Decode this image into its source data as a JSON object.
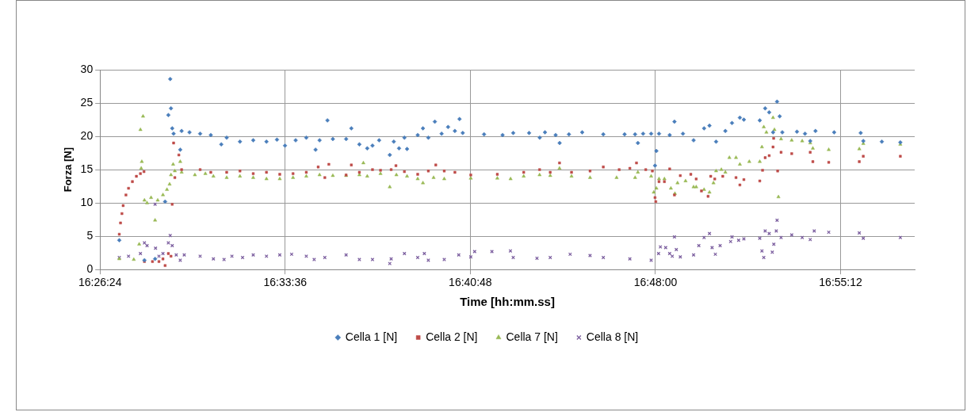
{
  "chart_data": {
    "type": "scatter",
    "xlabel": "Time [hh:mm.ss]",
    "ylabel": "Forza [N]",
    "xlim": [
      16.44,
      16.968
    ],
    "xticks": [
      {
        "value": 16.44,
        "label": "16:26:24"
      },
      {
        "value": 16.56,
        "label": "16:33:36"
      },
      {
        "value": 16.68,
        "label": "16:40:48"
      },
      {
        "value": 16.8,
        "label": "16:48:00"
      },
      {
        "value": 16.92,
        "label": "16:55:12"
      }
    ],
    "ylim": [
      0,
      30
    ],
    "yticks": [
      0,
      5,
      10,
      15,
      20,
      25,
      30
    ],
    "grid": true,
    "legend": "bottom",
    "series": [
      {
        "name": "Cella 1 [N]",
        "color": "#4a7ebb",
        "marker": "diamond",
        "x": [
          16.4525,
          16.4688,
          16.4757,
          16.4822,
          16.4843,
          16.4855,
          16.486,
          16.4868,
          16.4877,
          16.492,
          16.4929,
          16.498,
          16.5049,
          16.5118,
          16.5186,
          16.5221,
          16.5307,
          16.5393,
          16.5479,
          16.5547,
          16.5599,
          16.5668,
          16.5737,
          16.5797,
          16.5823,
          16.5874,
          16.5909,
          16.5995,
          16.6029,
          16.6081,
          16.6132,
          16.6166,
          16.6209,
          16.6278,
          16.6304,
          16.6338,
          16.6373,
          16.639,
          16.6459,
          16.6493,
          16.6528,
          16.657,
          16.6614,
          16.6656,
          16.67,
          16.673,
          16.6751,
          16.6889,
          16.7009,
          16.7078,
          16.7181,
          16.725,
          16.7284,
          16.7353,
          16.7379,
          16.7439,
          16.7525,
          16.7662,
          16.78,
          16.7868,
          16.7886,
          16.792,
          16.7972,
          16.7997,
          16.8006,
          16.8023,
          16.8092,
          16.8123,
          16.8178,
          16.8247,
          16.8315,
          16.835,
          16.8393,
          16.8453,
          16.8496,
          16.8547,
          16.8573,
          16.8676,
          16.8711,
          16.8737,
          16.8762,
          16.8788,
          16.8805,
          16.8822,
          16.8917,
          16.8969,
          16.9003,
          16.9037,
          16.9158,
          16.933,
          16.9347,
          16.9467,
          16.9587
        ],
        "values": [
          4.4,
          1.4,
          1.6,
          10.2,
          23.2,
          28.6,
          24.2,
          21.2,
          20.4,
          18,
          20.8,
          20.6,
          20.4,
          20.2,
          18.8,
          19.8,
          19.2,
          19.4,
          19.2,
          19.5,
          18.6,
          19.4,
          19.8,
          18,
          19.4,
          22.4,
          19.6,
          19.6,
          21.2,
          18.8,
          18.2,
          18.6,
          19.4,
          17.2,
          19.2,
          18.2,
          19.8,
          18.1,
          20.2,
          21.2,
          19.8,
          22.2,
          20.4,
          21.4,
          20.8,
          22.6,
          20.5,
          20.3,
          20.2,
          20.5,
          20.5,
          19.8,
          20.6,
          20.2,
          19,
          20.3,
          20.6,
          20.3,
          20.3,
          20.3,
          19,
          20.4,
          20.4,
          15.6,
          17.8,
          20.4,
          20.2,
          22.2,
          20.4,
          19.4,
          21.2,
          21.6,
          19.2,
          20.8,
          22,
          22.8,
          22.5,
          22.4,
          24.2,
          23.6,
          20.6,
          25.2,
          23,
          20.6,
          20.7,
          20.4,
          19.3,
          20.8,
          20.6,
          20.5,
          19.3,
          19.2,
          19.1
        ]
      },
      {
        "name": "Cella 2 [N]",
        "color": "#be4b48",
        "marker": "square",
        "x": [
          16.4525,
          16.4533,
          16.4542,
          16.455,
          16.4568,
          16.4585,
          16.461,
          16.4636,
          16.4662,
          16.4685,
          16.4688,
          16.474,
          16.4782,
          16.4808,
          16.4822,
          16.4843,
          16.486,
          16.4868,
          16.4877,
          16.4885,
          16.4911,
          16.4929,
          16.5049,
          16.5118,
          16.5221,
          16.5307,
          16.5393,
          16.5479,
          16.5565,
          16.5651,
          16.5737,
          16.5814,
          16.5857,
          16.5883,
          16.5995,
          16.6029,
          16.6081,
          16.6166,
          16.6218,
          16.6287,
          16.6318,
          16.6373,
          16.6459,
          16.6528,
          16.6576,
          16.6631,
          16.67,
          16.6803,
          16.6975,
          16.7146,
          16.7249,
          16.7318,
          16.7378,
          16.7456,
          16.7576,
          16.7662,
          16.7765,
          16.7834,
          16.7877,
          16.7937,
          16.798,
          16.7997,
          16.8002,
          16.8023,
          16.8058,
          16.8092,
          16.8123,
          16.8161,
          16.8229,
          16.8264,
          16.8298,
          16.8341,
          16.8358,
          16.8384,
          16.8436,
          16.8522,
          16.8547,
          16.8573,
          16.8676,
          16.8694,
          16.8711,
          16.8737,
          16.8762,
          16.8766,
          16.8792,
          16.8814,
          16.8883,
          16.9003,
          16.902,
          16.9123,
          16.9321,
          16.9347,
          16.9587
        ],
        "values": [
          5.3,
          7,
          8.4,
          9.6,
          11.2,
          12.2,
          13.2,
          14,
          14.4,
          14.7,
          1.2,
          1.2,
          1.2,
          1.6,
          0.6,
          2.4,
          2,
          9.8,
          19,
          13.8,
          17.2,
          15,
          15,
          14.6,
          14.6,
          14.8,
          14.4,
          14.6,
          14.3,
          14.4,
          14.6,
          15.4,
          13.8,
          15.8,
          14.2,
          15.7,
          14.6,
          15,
          14.9,
          15,
          15.6,
          14.7,
          14.3,
          14.8,
          15.7,
          14.8,
          14.6,
          14.2,
          14.3,
          14.6,
          15,
          14.6,
          16,
          14.6,
          14.8,
          15.4,
          15,
          15.2,
          16,
          15,
          14.8,
          10.8,
          10.2,
          13.2,
          13.2,
          15.1,
          11.2,
          14.1,
          14.3,
          13.6,
          11.8,
          11,
          14,
          13.6,
          14,
          13.8,
          12.7,
          13.5,
          13.3,
          14.9,
          16.8,
          17.1,
          18.4,
          19.7,
          14.8,
          17.6,
          17.4,
          17.6,
          16.2,
          16.1,
          16.2,
          17,
          17
        ]
      },
      {
        "name": "Cella 7 [N]",
        "color": "#98b954",
        "marker": "triangle",
        "x": [
          16.4525,
          16.4619,
          16.4654,
          16.4662,
          16.4667,
          16.4671,
          16.4679,
          16.4688,
          16.4705,
          16.4731,
          16.4757,
          16.4774,
          16.4808,
          16.4834,
          16.4851,
          16.486,
          16.4874,
          16.4885,
          16.492,
          16.4929,
          16.5015,
          16.5083,
          16.5135,
          16.5221,
          16.5307,
          16.5393,
          16.5479,
          16.5565,
          16.5651,
          16.5737,
          16.5823,
          16.5909,
          16.5995,
          16.6081,
          16.6107,
          16.6132,
          16.6218,
          16.6278,
          16.6321,
          16.639,
          16.6459,
          16.6493,
          16.6562,
          16.6631,
          16.6803,
          16.6975,
          16.7061,
          16.7146,
          16.7249,
          16.7318,
          16.7378,
          16.7456,
          16.7576,
          16.7748,
          16.7868,
          16.7886,
          16.7972,
          16.7989,
          16.8006,
          16.8023,
          16.8058,
          16.81,
          16.8126,
          16.8143,
          16.8195,
          16.8247,
          16.8264,
          16.8315,
          16.835,
          16.8376,
          16.8393,
          16.8427,
          16.8453,
          16.8479,
          16.8522,
          16.8547,
          16.8608,
          16.8676,
          16.869,
          16.8702,
          16.8719,
          16.8762,
          16.8771,
          16.8797,
          16.8814,
          16.8883,
          16.8951,
          16.9003,
          16.902,
          16.9123,
          16.9321,
          16.9347,
          16.9587
        ],
        "values": [
          1.6,
          1.5,
          3.8,
          21,
          15.2,
          16.2,
          23,
          10.4,
          10,
          10.8,
          7.4,
          10.4,
          11.2,
          12,
          12.8,
          14.2,
          15.8,
          14.8,
          16.2,
          14.6,
          14.2,
          14.4,
          14,
          13.8,
          14,
          13.8,
          13.6,
          13.6,
          13.8,
          14,
          14.2,
          14.1,
          14.1,
          14.2,
          16,
          14,
          14.4,
          12.4,
          14.2,
          14,
          13.6,
          13,
          13.8,
          13.6,
          13.7,
          13.7,
          13.6,
          14,
          14.2,
          14.1,
          15.2,
          14,
          13.8,
          13.8,
          13.8,
          14.6,
          14,
          11.6,
          12.2,
          13.6,
          13.6,
          12.2,
          11.4,
          13,
          13.3,
          12.4,
          12.4,
          12,
          11.6,
          13,
          14.8,
          15,
          14.6,
          16.8,
          16.8,
          15.8,
          16.2,
          16.2,
          18.4,
          21.4,
          20.6,
          22.8,
          21,
          10.9,
          19.6,
          19.4,
          19.3,
          19,
          18.2,
          18,
          18.1,
          18.9,
          18.8
        ]
      },
      {
        "name": "Cella 8 [N]",
        "color": "#7d60a0",
        "marker": "cross",
        "x": [
          16.4525,
          16.4585,
          16.4662,
          16.4688,
          16.4705,
          16.4757,
          16.476,
          16.4782,
          16.4808,
          16.4843,
          16.4855,
          16.4868,
          16.4894,
          16.492,
          16.4946,
          16.5049,
          16.5135,
          16.5204,
          16.5255,
          16.5324,
          16.5393,
          16.5479,
          16.5565,
          16.5642,
          16.5737,
          16.5788,
          16.5857,
          16.5995,
          16.6081,
          16.6166,
          16.6278,
          16.6287,
          16.6373,
          16.6459,
          16.6502,
          16.6528,
          16.6631,
          16.6725,
          16.6803,
          16.6828,
          16.694,
          16.706,
          16.7078,
          16.7232,
          16.7318,
          16.7447,
          16.7576,
          16.7662,
          16.7834,
          16.7972,
          16.802,
          16.8032,
          16.8066,
          16.8092,
          16.8109,
          16.8123,
          16.8135,
          16.8161,
          16.8247,
          16.8281,
          16.8315,
          16.835,
          16.8367,
          16.8388,
          16.8419,
          16.8487,
          16.8496,
          16.8539,
          16.8573,
          16.8676,
          16.869,
          16.8702,
          16.8711,
          16.8737,
          16.8757,
          16.8767,
          16.8783,
          16.8788,
          16.8814,
          16.8883,
          16.8951,
          16.9003,
          16.9029,
          16.9123,
          16.9321,
          16.9347,
          16.9587
        ],
        "values": [
          1.8,
          2,
          2.4,
          4,
          3.6,
          9.8,
          3.2,
          2,
          2.4,
          4,
          5.1,
          3.6,
          2.2,
          1.4,
          2.2,
          2,
          1.6,
          1.5,
          2,
          1.8,
          2.2,
          2,
          2.2,
          2.3,
          2,
          1.5,
          1.8,
          2.2,
          1.5,
          1.5,
          0.9,
          1.6,
          2.4,
          1.8,
          2.4,
          1.4,
          1.5,
          2.2,
          1.9,
          2.7,
          2.7,
          2.8,
          1.8,
          1.7,
          1.8,
          2.3,
          2.1,
          1.8,
          1.6,
          1.4,
          2.4,
          3.4,
          3.3,
          2.4,
          2,
          4.9,
          3,
          1.9,
          2.2,
          3.6,
          4.8,
          5.4,
          3.3,
          2.3,
          3.6,
          4.2,
          4.9,
          4.4,
          4.6,
          4.7,
          2.8,
          1.8,
          5.8,
          5.4,
          2.6,
          3.8,
          5.8,
          7.4,
          4.8,
          5.2,
          4.8,
          4.5,
          5.8,
          5.6,
          5.5,
          4.7,
          4.8
        ]
      }
    ]
  }
}
